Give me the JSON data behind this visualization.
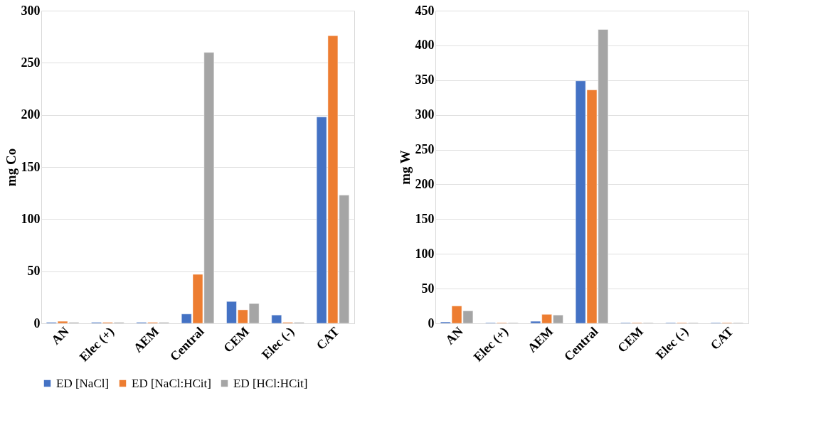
{
  "chart_data": [
    {
      "type": "bar",
      "ylabel": "mg Co",
      "categories": [
        "AN",
        "Elec (+)",
        "AEM",
        "Central",
        "CEM",
        "Elec (-)",
        "CAT"
      ],
      "ylim": [
        0,
        300
      ],
      "yticks": [
        0,
        50,
        100,
        150,
        200,
        250,
        300
      ],
      "grid": "y",
      "legend": "bottom",
      "series": [
        {
          "name": "ED [NaCl]",
          "color": "#4472c4",
          "values": [
            1,
            1,
            1,
            9,
            21,
            8,
            198
          ]
        },
        {
          "name": "ED [NaCl:HCit]",
          "color": "#ed7d31",
          "values": [
            2,
            1,
            1,
            47,
            13,
            1,
            276
          ]
        },
        {
          "name": "ED [HCl:HCit]",
          "color": "#a5a5a5",
          "values": [
            1,
            1,
            1,
            260,
            19,
            1,
            123
          ]
        }
      ]
    },
    {
      "type": "bar",
      "ylabel": "mg W",
      "categories": [
        "AN",
        "Elec (+)",
        "AEM",
        "Central",
        "CEM",
        "Elec (-)",
        "CAT"
      ],
      "ylim": [
        0,
        450
      ],
      "yticks": [
        0,
        50,
        100,
        150,
        200,
        250,
        300,
        350,
        400,
        450
      ],
      "grid": "y",
      "legend": "bottom",
      "series": [
        {
          "name": "ED [NaCl]",
          "color": "#4472c4",
          "values": [
            2,
            1,
            3,
            349,
            1,
            1,
            1
          ]
        },
        {
          "name": "ED [NaCl:HCit]",
          "color": "#ed7d31",
          "values": [
            25,
            1,
            13,
            336,
            1,
            1,
            1
          ]
        },
        {
          "name": "ED [HCl:HCit]",
          "color": "#a5a5a5",
          "values": [
            18,
            1,
            12,
            423,
            1,
            1,
            1
          ]
        }
      ]
    }
  ]
}
